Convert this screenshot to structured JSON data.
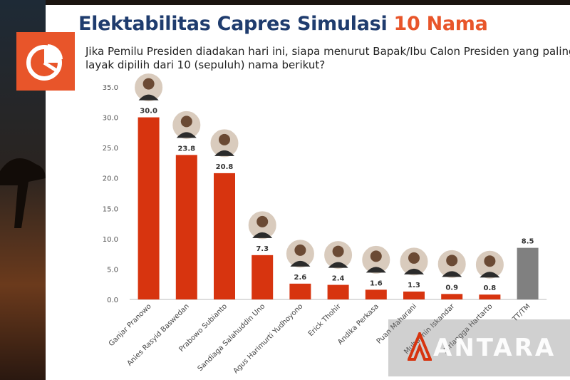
{
  "title": {
    "main": "Elektabilitas Capres Simulasi ",
    "accent": "10 Nama"
  },
  "question": {
    "line1": "Jika Pemilu Presiden diadakan hari ini, siapa menurut Bapak/Ibu Calon Presiden yang paling",
    "line2": "layak dipilih dari 10 (sepuluh) nama berikut?"
  },
  "icon": "pie-chart-icon",
  "watermark": "ANTARA",
  "colors": {
    "bar": "#d7340f",
    "other": "#808080",
    "accent": "#e8552a",
    "title": "#1f3c6e"
  },
  "chart_data": {
    "type": "bar",
    "categories": [
      "Ganjar Pranowo",
      "Anies Rasyid Baswedan",
      "Prabowo Subianto",
      "Sandiaga Salahuddin Uno",
      "Agus Harimurti Yudhoyono",
      "Erick Thohir",
      "Andika Perkasa",
      "Puan Maharani",
      "Muhaimin Iskandar",
      "Airlangga Hartarto",
      "TT/TM"
    ],
    "values": [
      30.0,
      23.8,
      20.8,
      7.3,
      2.6,
      2.4,
      1.6,
      1.3,
      0.9,
      0.8,
      8.5
    ],
    "value_labels": [
      "30.0",
      "23.8",
      "20.8",
      "7.3",
      "2.6",
      "2.4",
      "1.6",
      "1.3",
      "0.9",
      "0.8",
      "8.5"
    ],
    "yticks": [
      "0.0",
      "5.0",
      "10.0",
      "15.0",
      "20.0",
      "25.0",
      "30.0",
      "35.0"
    ],
    "ylim": [
      0,
      35
    ],
    "xlabel": "",
    "ylabel": ""
  }
}
